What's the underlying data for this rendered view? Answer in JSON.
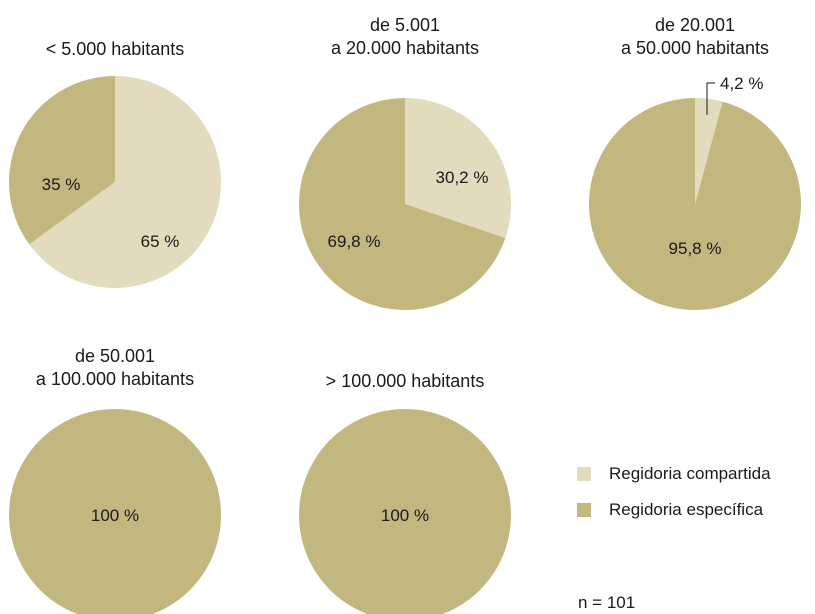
{
  "colors": {
    "compartida": "#e3dbbd",
    "especifica": "#c2b77f",
    "leader": "#1a1a1a"
  },
  "chart_data": [
    {
      "type": "pie",
      "title_lines": [
        "< 5.000 habitants"
      ],
      "slices": [
        {
          "series": "Regidoria compartida",
          "value": 65,
          "label": "65 %"
        },
        {
          "series": "Regidoria específica",
          "value": 35,
          "label": "35 %"
        }
      ]
    },
    {
      "type": "pie",
      "title_lines": [
        "de 5.001",
        "a 20.000 habitants"
      ],
      "slices": [
        {
          "series": "Regidoria compartida",
          "value": 30.2,
          "label": "30,2 %"
        },
        {
          "series": "Regidoria específica",
          "value": 69.8,
          "label": "69,8 %"
        }
      ]
    },
    {
      "type": "pie",
      "title_lines": [
        "de 20.001",
        "a 50.000 habitants"
      ],
      "slices": [
        {
          "series": "Regidoria compartida",
          "value": 4.2,
          "label": "4,2 %"
        },
        {
          "series": "Regidoria específica",
          "value": 95.8,
          "label": "95,8 %"
        }
      ]
    },
    {
      "type": "pie",
      "title_lines": [
        "de 50.001",
        "a 100.000 habitants"
      ],
      "slices": [
        {
          "series": "Regidoria específica",
          "value": 100,
          "label": "100 %"
        }
      ]
    },
    {
      "type": "pie",
      "title_lines": [
        "> 100.000 habitants"
      ],
      "slices": [
        {
          "series": "Regidoria específica",
          "value": 100,
          "label": "100 %"
        }
      ]
    }
  ],
  "legend": {
    "items": [
      {
        "label": "Regidoria compartida",
        "color": "#e3dbbd"
      },
      {
        "label": "Regidoria específica",
        "color": "#c2b77f"
      }
    ]
  },
  "note": "n = 101"
}
